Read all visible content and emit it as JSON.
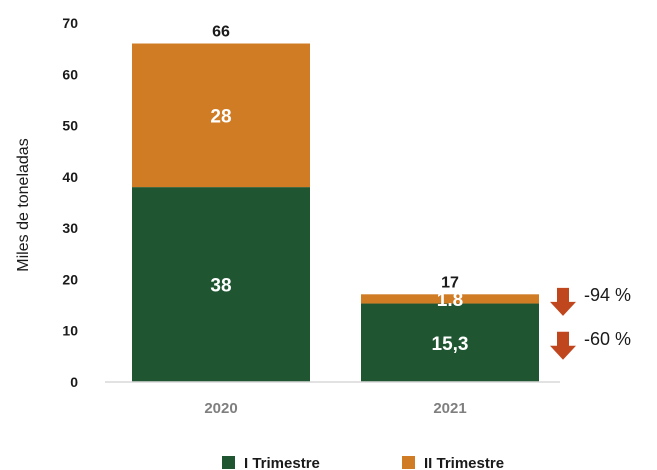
{
  "colors": {
    "series_1": "#1f5631",
    "series_2": "#d07c24",
    "arrow": "#c0461e",
    "axis": "#d9d9d9"
  },
  "chart_data": {
    "type": "bar",
    "stacked": true,
    "categories": [
      "2020",
      "2021"
    ],
    "series": [
      {
        "name": "I Trimestre",
        "values": [
          38,
          15.3
        ],
        "labels": [
          "38",
          "15,3"
        ]
      },
      {
        "name": "II Trimestre",
        "values": [
          28,
          1.8
        ],
        "labels": [
          "28",
          "1.8"
        ]
      }
    ],
    "totals": [
      "66",
      "17"
    ],
    "ylabel": "Miles de toneladas",
    "xlabel": "",
    "ylim": [
      0,
      70
    ],
    "yticks": [
      0,
      10,
      20,
      30,
      40,
      50,
      60,
      70
    ],
    "grid": false,
    "legend_position": "bottom",
    "annotations": [
      {
        "series": "II Trimestre",
        "category": "2021",
        "text": "-94 %",
        "icon": "down-arrow-icon"
      },
      {
        "series": "I Trimestre",
        "category": "2021",
        "text": "-60 %",
        "icon": "down-arrow-icon"
      }
    ]
  }
}
